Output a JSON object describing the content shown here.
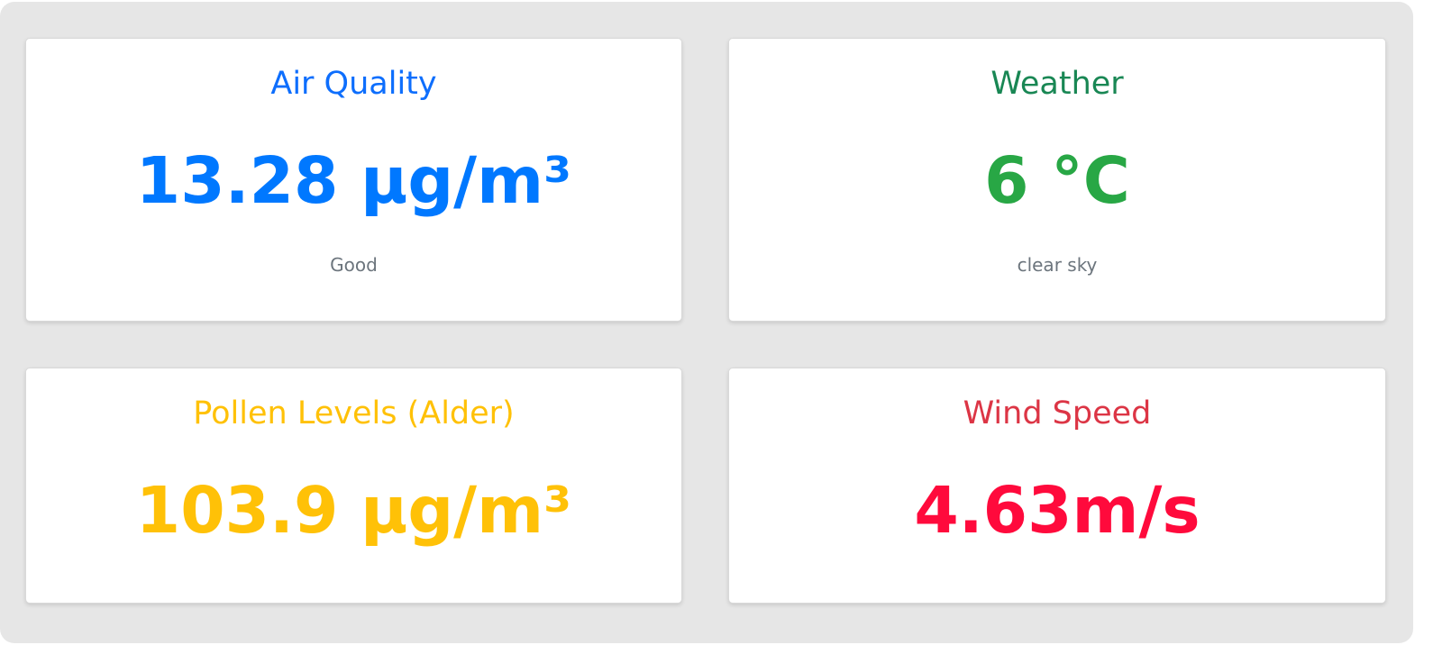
{
  "colors": {
    "air_quality": "#0d6efd",
    "air_quality_value": "#0078ff",
    "weather_title": "#198754",
    "weather_value": "#28a745",
    "pollen": "#ffc107",
    "wind_title": "#dc3545",
    "wind_value": "#ff0a3c",
    "subtext": "#6c757d"
  },
  "cards": {
    "air_quality": {
      "title": "Air Quality",
      "value": "13.28 µg/m³",
      "status": "Good"
    },
    "weather": {
      "title": "Weather",
      "value": "6 °C",
      "description": "clear sky"
    },
    "pollen": {
      "title": "Pollen Levels (Alder)",
      "value": "103.9 µg/m³"
    },
    "wind": {
      "title": "Wind Speed",
      "value": "4.63m/s"
    }
  }
}
